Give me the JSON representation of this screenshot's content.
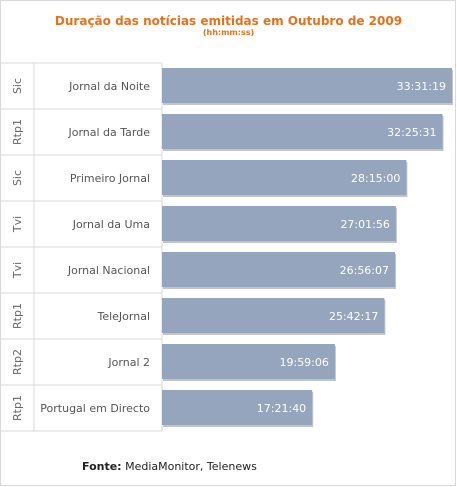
{
  "chart_data": {
    "type": "bar",
    "orientation": "horizontal",
    "title": "Duração das notícias emitidas em Outubro de 2009",
    "subtitle": "(hh:mm:ss)",
    "xlabel": "",
    "ylabel": "",
    "groups": [
      "Sic",
      "Rtp1",
      "Sic",
      "Tvi",
      "Tvi",
      "Rtp1",
      "Rtp2",
      "Rtp1"
    ],
    "categories": [
      "Jornal da Noite",
      "Jornal da Tarde",
      "Primeiro Jornal",
      "Jornal da Uma",
      "Jornal Nacional",
      "TeleJornal",
      "Jornal 2",
      "Portugal em Directo"
    ],
    "values": [
      "33:31:19",
      "32:25:31",
      "28:15:00",
      "27:01:56",
      "26:56:07",
      "25:42:17",
      "19:59:06",
      "17:21:40"
    ],
    "bar_color": "#95a5bd"
  },
  "footer": {
    "source_label": "Fonte:",
    "source_text": "MediaMonitor, Telenews"
  }
}
